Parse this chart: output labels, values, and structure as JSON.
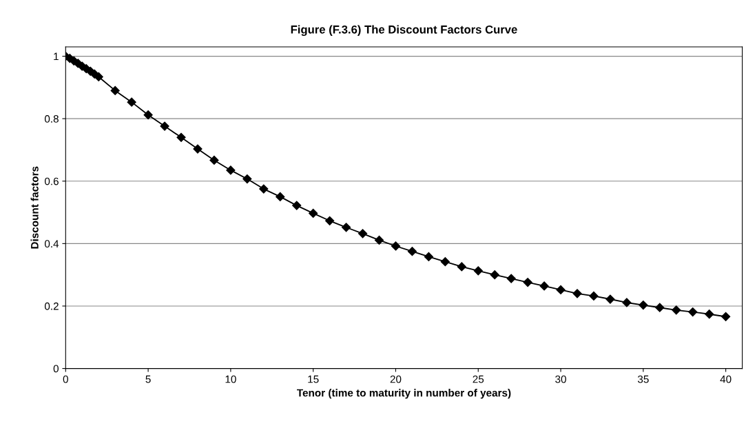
{
  "chart_data": {
    "type": "line",
    "title": "Figure (F.3.6) The Discount Factors Curve",
    "xlabel": "Tenor (time to maturity in number of years)",
    "ylabel": "Discount factors",
    "x": [
      0,
      0.25,
      0.5,
      0.75,
      1,
      1.25,
      1.5,
      1.75,
      2,
      3,
      4,
      5,
      6,
      7,
      8,
      9,
      10,
      11,
      12,
      13,
      14,
      15,
      16,
      17,
      18,
      19,
      20,
      21,
      22,
      23,
      24,
      25,
      26,
      27,
      28,
      29,
      30,
      31,
      32,
      33,
      34,
      35,
      36,
      37,
      38,
      39,
      40
    ],
    "series": [
      {
        "color": "#000000",
        "values": [
          1,
          0.993,
          0.985,
          0.977,
          0.968,
          0.96,
          0.952,
          0.943,
          0.934,
          0.89,
          0.853,
          0.812,
          0.776,
          0.74,
          0.703,
          0.667,
          0.635,
          0.607,
          0.575,
          0.55,
          0.522,
          0.497,
          0.473,
          0.452,
          0.432,
          0.411,
          0.392,
          0.375,
          0.358,
          0.342,
          0.326,
          0.313,
          0.3,
          0.288,
          0.276,
          0.264,
          0.252,
          0.24,
          0.232,
          0.222,
          0.211,
          0.203,
          0.195,
          0.187,
          0.181,
          0.174,
          0.166
        ]
      }
    ],
    "xlim": [
      0,
      41
    ],
    "xticks": [
      0,
      5,
      10,
      15,
      20,
      25,
      30,
      35,
      40
    ],
    "ylim": [
      0,
      1.03
    ],
    "yticks": [
      0,
      0.2,
      0.4,
      0.6,
      0.8,
      1
    ],
    "grid": "y",
    "marker": "diamond",
    "line_style": "solid"
  }
}
